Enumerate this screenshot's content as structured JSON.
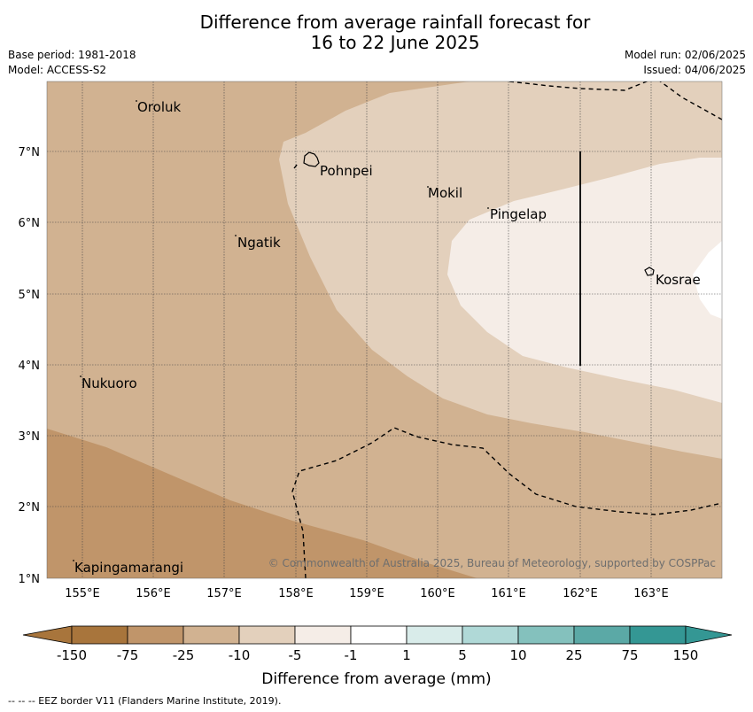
{
  "title_line1": "Difference from average rainfall forecast for",
  "title_line2": "16 to 22 June 2025",
  "base_period": "Base period: 1981-2018",
  "model": "Model: ACCESS-S2",
  "model_run": "Model run: 02/06/2025",
  "issued": "Issued: 04/06/2025",
  "copyright": "© Commonwealth of Australia 2025, Bureau of Meteorology, supported by COSPPac",
  "footer": "--  --  -- EEZ border V11 (Flanders Marine Institute, 2019).",
  "colorbar": {
    "label": "Difference from average (mm)",
    "ticks": [
      "-150",
      "-75",
      "-25",
      "-10",
      "-5",
      "-1",
      "1",
      "5",
      "10",
      "25",
      "75",
      "150"
    ],
    "colors": [
      "#a8753c",
      "#c0956a",
      "#d1b291",
      "#e3d0bc",
      "#f5ede7",
      "#ffffff",
      "#d9ecea",
      "#b0d9d7",
      "#84c1bd",
      "#5ba9a6",
      "#349794"
    ]
  },
  "map": {
    "lon_labels": [
      "155°E",
      "156°E",
      "157°E",
      "158°E",
      "159°E",
      "160°E",
      "161°E",
      "162°E",
      "163°E"
    ],
    "lat_labels": [
      "7°N",
      "6°N",
      "5°N",
      "4°N",
      "3°N",
      "2°N",
      "1°N"
    ],
    "places": [
      "Oroluk",
      "Pohnpei",
      "Mokil",
      "Pingelap",
      "Ngatik",
      "Kosrae",
      "Nukuoro",
      "Kapingamarangi"
    ]
  }
}
